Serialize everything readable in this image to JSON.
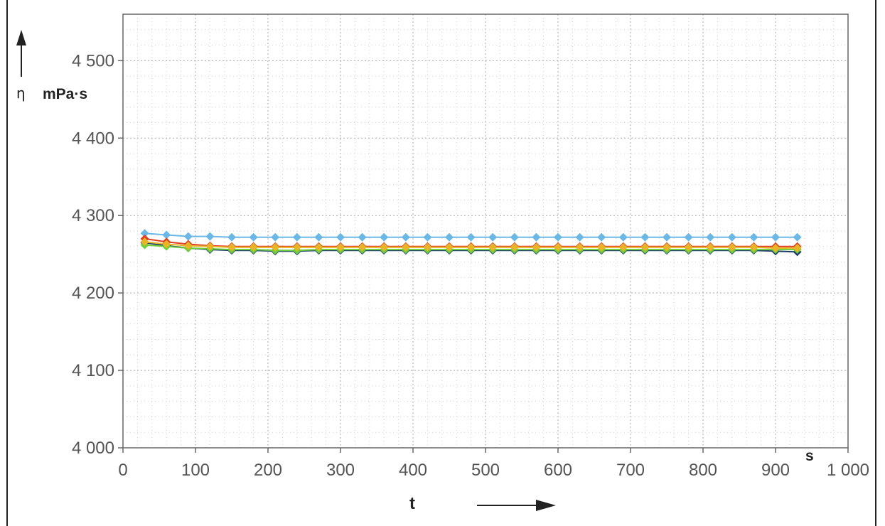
{
  "chart_data": {
    "type": "line",
    "title": "",
    "xlabel": "t",
    "x_unit": "s",
    "ylabel": "η",
    "y_unit": "mPa·s",
    "xlim": [
      0,
      1000
    ],
    "ylim": [
      4000,
      4560
    ],
    "x_ticks": [
      0,
      100,
      200,
      300,
      400,
      500,
      600,
      700,
      800,
      900,
      1000
    ],
    "x_tick_labels": [
      "0",
      "100",
      "200",
      "300",
      "400",
      "500",
      "600",
      "700",
      "800",
      "900",
      "1 000"
    ],
    "y_ticks": [
      4000,
      4100,
      4200,
      4300,
      4400,
      4500
    ],
    "y_tick_labels": [
      "4 000",
      "4 100",
      "4 200",
      "4 300",
      "4 400",
      "4 500"
    ],
    "grid": true,
    "legend": "none",
    "x": [
      30,
      60,
      90,
      120,
      150,
      180,
      210,
      240,
      270,
      300,
      330,
      360,
      390,
      420,
      450,
      480,
      510,
      540,
      570,
      600,
      630,
      660,
      690,
      720,
      750,
      780,
      810,
      840,
      870,
      900,
      930
    ],
    "series": [
      {
        "color": "#6bb8e6",
        "values": [
          4277,
          4275,
          4273,
          4273,
          4272,
          4272,
          4272,
          4272,
          4272,
          4272,
          4272,
          4272,
          4272,
          4272,
          4272,
          4272,
          4272,
          4272,
          4272,
          4272,
          4272,
          4272,
          4272,
          4272,
          4272,
          4272,
          4272,
          4272,
          4272,
          4272,
          4272
        ]
      },
      {
        "color": "#e04020",
        "values": [
          4270,
          4266,
          4263,
          4261,
          4260,
          4260,
          4260,
          4260,
          4260,
          4260,
          4260,
          4260,
          4260,
          4260,
          4260,
          4260,
          4260,
          4260,
          4260,
          4260,
          4260,
          4260,
          4260,
          4260,
          4260,
          4260,
          4260,
          4260,
          4260,
          4260,
          4260
        ]
      },
      {
        "color": "#1f3c6e",
        "values": [
          4265,
          4261,
          4258,
          4256,
          4255,
          4255,
          4254,
          4254,
          4255,
          4255,
          4255,
          4255,
          4255,
          4255,
          4255,
          4255,
          4255,
          4255,
          4255,
          4255,
          4255,
          4255,
          4255,
          4255,
          4255,
          4255,
          4255,
          4255,
          4255,
          4254,
          4253
        ]
      },
      {
        "color": "#6ccf3a",
        "values": [
          4262,
          4260,
          4258,
          4257,
          4256,
          4256,
          4255,
          4255,
          4256,
          4256,
          4256,
          4256,
          4256,
          4256,
          4256,
          4256,
          4256,
          4256,
          4256,
          4256,
          4256,
          4256,
          4256,
          4256,
          4256,
          4256,
          4256,
          4256,
          4256,
          4256,
          4256
        ]
      },
      {
        "color": "#e8b428",
        "values": [
          4266,
          4263,
          4261,
          4260,
          4259,
          4259,
          4259,
          4259,
          4259,
          4259,
          4259,
          4259,
          4259,
          4259,
          4259,
          4259,
          4259,
          4259,
          4259,
          4259,
          4259,
          4259,
          4259,
          4259,
          4259,
          4259,
          4259,
          4259,
          4259,
          4258,
          4258
        ]
      }
    ]
  }
}
